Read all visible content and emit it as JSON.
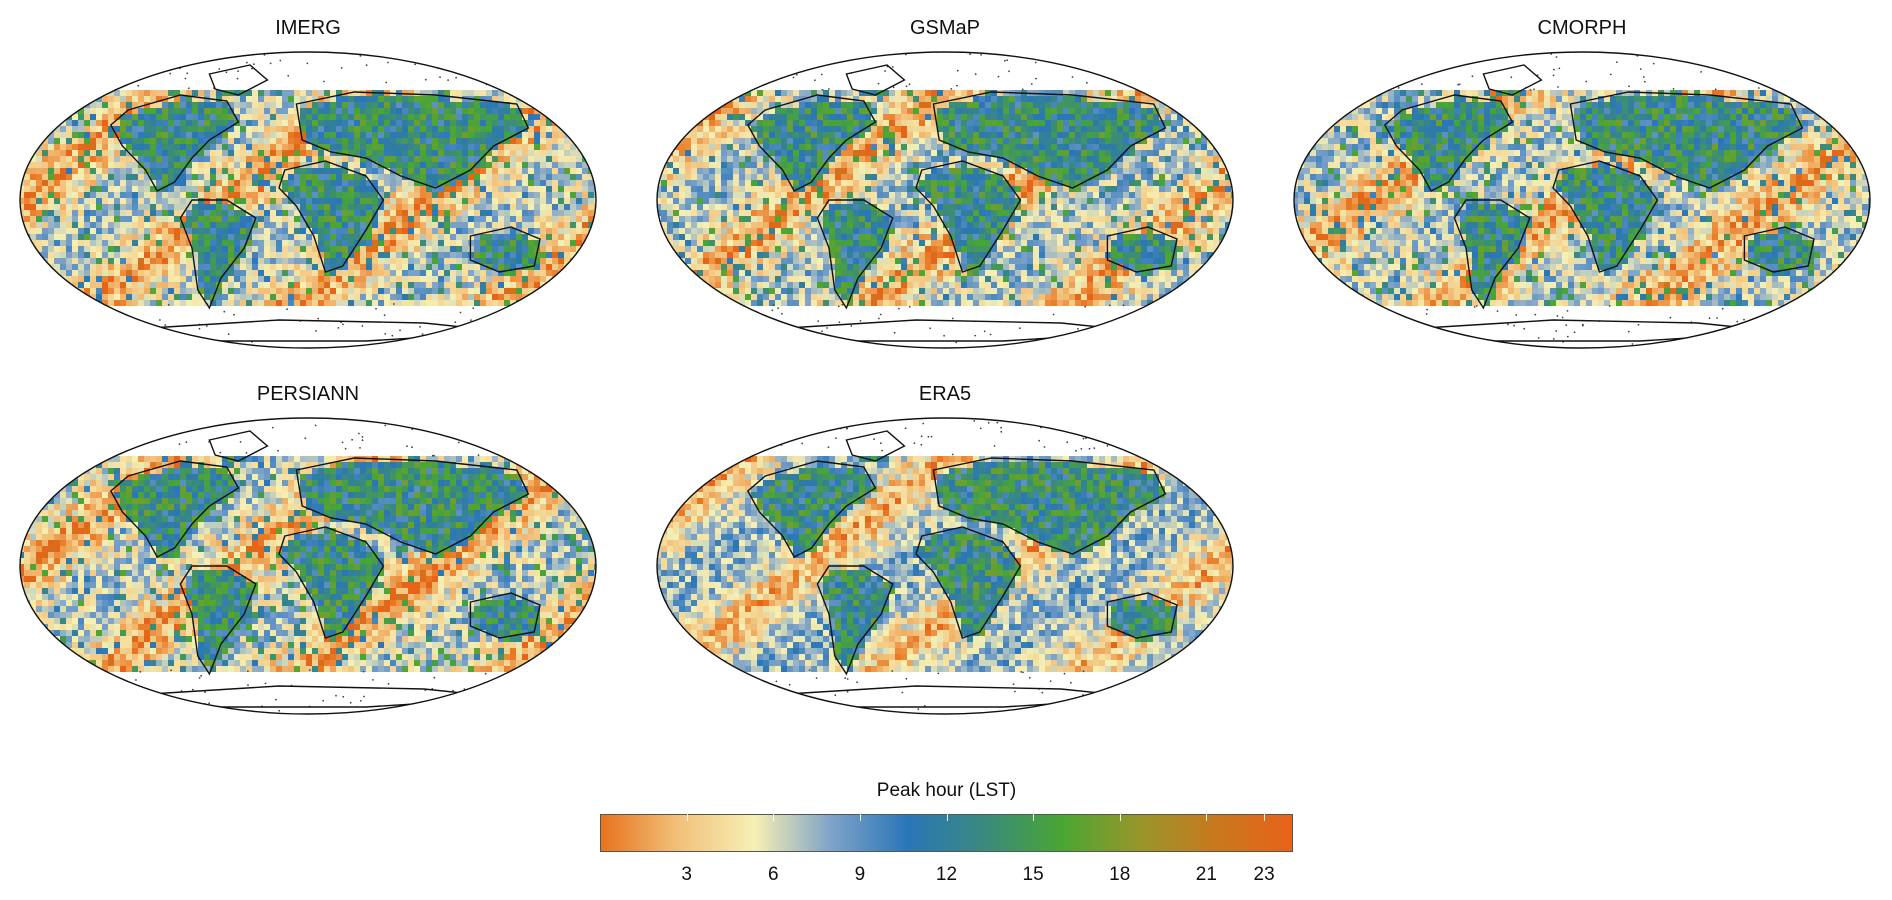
{
  "panels": [
    {
      "title": "IMERG"
    },
    {
      "title": "GSMaP"
    },
    {
      "title": "CMORPH"
    },
    {
      "title": "PERSIANN"
    },
    {
      "title": "ERA5"
    }
  ],
  "colorbar": {
    "title": "Peak hour (LST)",
    "range": [
      0,
      24
    ],
    "ticks": [
      3,
      6,
      9,
      12,
      15,
      18,
      21,
      23
    ],
    "colors": [
      "#e8731e",
      "#f2c07a",
      "#f6f0b4",
      "#7ea3c8",
      "#2a76b8",
      "#3a8a7e",
      "#49a634",
      "#97962a",
      "#c8791e",
      "#e8621a"
    ]
  }
}
